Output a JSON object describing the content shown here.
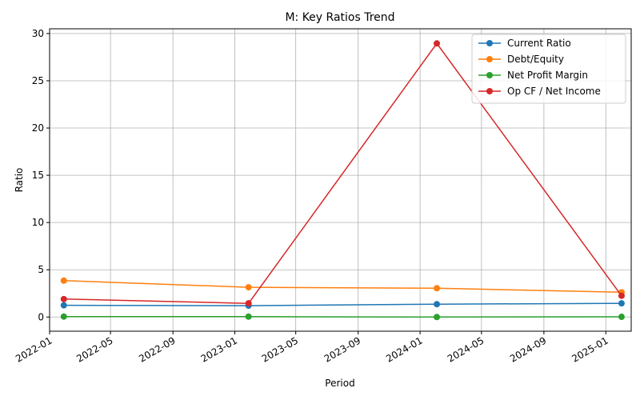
{
  "chart_data": {
    "type": "line",
    "title": "M: Key Ratios Trend",
    "xlabel": "Period",
    "ylabel": "Ratio",
    "x": [
      "2022-01-29",
      "2023-01-28",
      "2024-02-03",
      "2025-02-01"
    ],
    "xlim": [
      "2022-01-01",
      "2025-02-20"
    ],
    "ylim": [
      -1.5,
      30.5
    ],
    "x_ticks": [
      "2022-01",
      "2022-05",
      "2022-09",
      "2023-01",
      "2023-05",
      "2023-09",
      "2024-01",
      "2024-05",
      "2024-09",
      "2025-01"
    ],
    "y_ticks": [
      0,
      5,
      10,
      15,
      20,
      25,
      30
    ],
    "grid": true,
    "legend_position": "top-right",
    "series": [
      {
        "name": "Current Ratio",
        "color": "#1f77b4",
        "values": [
          1.24,
          1.2,
          1.36,
          1.45
        ]
      },
      {
        "name": "Debt/Equity",
        "color": "#ff7f0e",
        "values": [
          3.85,
          3.15,
          3.05,
          2.62
        ]
      },
      {
        "name": "Net Profit Margin",
        "color": "#2ca02c",
        "values": [
          0.05,
          0.04,
          0.0,
          0.02
        ]
      },
      {
        "name": "Op CF / Net Income",
        "color": "#d62728",
        "values": [
          1.9,
          1.45,
          28.95,
          2.25
        ]
      }
    ]
  }
}
